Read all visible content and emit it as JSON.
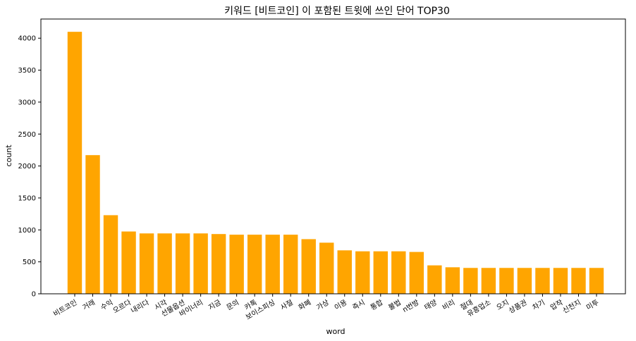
{
  "chart_data": {
    "type": "bar",
    "title": "키워드 [비트코인] 이 포함된 트윗에 쓰인 단어 TOP30",
    "xlabel": "word",
    "ylabel": "count",
    "ylim": [
      0,
      4300
    ],
    "yticks": [
      0,
      500,
      1000,
      1500,
      2000,
      2500,
      3000,
      3500,
      4000
    ],
    "bar_color": "#FFA500",
    "categories": [
      "비트코인",
      "거래",
      "수익",
      "오르다",
      "내리다",
      "시각",
      "선물옵션",
      "바이너리",
      "지금",
      "문의",
      "카톡",
      "보이스피싱",
      "사절",
      "화폐",
      "가상",
      "이용",
      "즉시",
      "통합",
      "불법",
      "n번방",
      "태양",
      "비리",
      "절대",
      "유흥업소",
      "오지",
      "상품권",
      "차기",
      "압작",
      "신천지",
      "미투"
    ],
    "values": [
      4100,
      2170,
      1230,
      975,
      945,
      945,
      945,
      945,
      935,
      925,
      925,
      925,
      925,
      855,
      800,
      680,
      665,
      665,
      665,
      655,
      445,
      415,
      405,
      405,
      405,
      405,
      405,
      405,
      405,
      405
    ],
    "grid": false,
    "legend": "none"
  }
}
